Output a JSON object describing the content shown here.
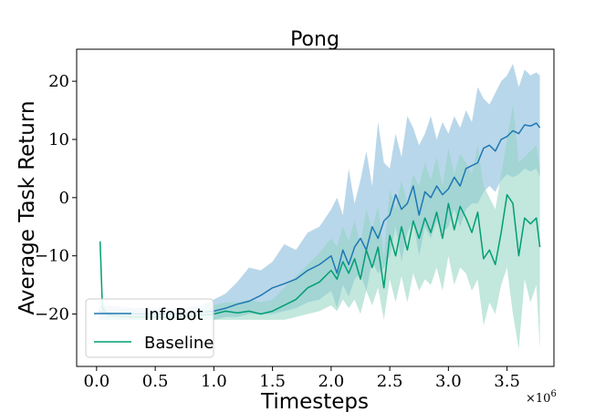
{
  "chart_data": {
    "type": "line",
    "title": "Pong",
    "xlabel": "Timesteps",
    "ylabel": "Average Task Return",
    "x_multiplier": "×10",
    "x_multiplier_exp": "6",
    "xlim": [
      -0.17,
      3.9
    ],
    "ylim": [
      -29,
      25.5
    ],
    "xticks": [
      0.0,
      0.5,
      1.0,
      1.5,
      2.0,
      2.5,
      3.0,
      3.5
    ],
    "xtick_labels": [
      "0.0",
      "0.5",
      "1.0",
      "1.5",
      "2.0",
      "2.5",
      "3.0",
      "3.5"
    ],
    "yticks": [
      -20,
      -10,
      0,
      10,
      20
    ],
    "ytick_labels": [
      "−20",
      "−10",
      "0",
      "10",
      "20"
    ],
    "grid": false,
    "legend_position": "lower-left",
    "series": [
      {
        "name": "InfoBot",
        "color": "#1f77b4",
        "band_color": "#7fb6d9",
        "x": [
          0.02,
          0.1,
          0.3,
          0.5,
          0.7,
          0.9,
          1.0,
          1.1,
          1.2,
          1.3,
          1.4,
          1.5,
          1.6,
          1.7,
          1.8,
          1.9,
          2.0,
          2.05,
          2.1,
          2.15,
          2.2,
          2.25,
          2.3,
          2.35,
          2.4,
          2.45,
          2.5,
          2.55,
          2.6,
          2.65,
          2.7,
          2.75,
          2.8,
          2.85,
          2.9,
          2.95,
          3.0,
          3.05,
          3.1,
          3.15,
          3.2,
          3.25,
          3.3,
          3.35,
          3.4,
          3.45,
          3.5,
          3.55,
          3.6,
          3.65,
          3.7,
          3.75,
          3.78
        ],
        "mean": [
          -19.5,
          -19.8,
          -20.0,
          -20.0,
          -20.0,
          -19.7,
          -19.5,
          -19.0,
          -18.3,
          -17.8,
          -16.8,
          -15.5,
          -14.8,
          -14.0,
          -12.5,
          -11.5,
          -10.0,
          -13.0,
          -9.0,
          -11.5,
          -8.5,
          -7.0,
          -9.0,
          -5.0,
          -7.0,
          -4.0,
          -3.0,
          0.5,
          -2.0,
          -1.0,
          2.0,
          -3.0,
          1.0,
          0.0,
          2.0,
          0.5,
          1.5,
          3.5,
          2.0,
          5.0,
          5.5,
          6.0,
          8.5,
          9.0,
          8.0,
          10.0,
          10.5,
          11.5,
          11.0,
          12.5,
          12.3,
          12.8,
          12.0
        ],
        "lower": [
          -21.0,
          -21.0,
          -21.0,
          -21.0,
          -21.0,
          -21.0,
          -21.0,
          -20.5,
          -20.5,
          -20.0,
          -20.0,
          -20.0,
          -19.5,
          -19.0,
          -18.0,
          -17.5,
          -16.0,
          -19.0,
          -15.0,
          -17.0,
          -14.0,
          -13.0,
          -16.0,
          -11.0,
          -13.0,
          -12.0,
          -10.0,
          -5.0,
          -11.0,
          -6.0,
          -4.0,
          -10.0,
          -5.0,
          -7.0,
          -4.0,
          -6.0,
          -5.0,
          -2.0,
          -5.0,
          -2.0,
          -1.0,
          -1.0,
          1.0,
          2.0,
          1.0,
          3.0,
          4.0,
          3.5,
          4.0,
          5.0,
          4.5,
          5.0,
          3.5
        ],
        "upper": [
          -18.5,
          -18.5,
          -19.0,
          -19.0,
          -19.0,
          -18.5,
          -17.5,
          -16.5,
          -14.5,
          -12.0,
          -12.5,
          -11.0,
          -8.0,
          -9.0,
          -6.0,
          -5.0,
          -2.0,
          0.0,
          -3.0,
          5.0,
          -1.0,
          3.0,
          8.0,
          2.0,
          13.0,
          6.0,
          5.0,
          11.0,
          7.0,
          14.0,
          12.0,
          9.0,
          11.0,
          14.0,
          10.0,
          13.0,
          11.0,
          14.0,
          12.0,
          15.0,
          13.0,
          19.0,
          17.0,
          16.0,
          18.0,
          20.0,
          21.0,
          23.0,
          19.0,
          22.0,
          21.0,
          21.5,
          21.0
        ]
      },
      {
        "name": "Baseline",
        "color": "#009e73",
        "band_color": "#8fd3c0",
        "x": [
          0.03,
          0.05,
          0.1,
          0.3,
          0.5,
          0.7,
          0.9,
          1.0,
          1.1,
          1.2,
          1.3,
          1.4,
          1.5,
          1.6,
          1.7,
          1.8,
          1.9,
          2.0,
          2.05,
          2.1,
          2.15,
          2.2,
          2.25,
          2.3,
          2.35,
          2.4,
          2.45,
          2.5,
          2.55,
          2.6,
          2.65,
          2.7,
          2.75,
          2.8,
          2.85,
          2.9,
          2.95,
          3.0,
          3.05,
          3.1,
          3.15,
          3.2,
          3.25,
          3.3,
          3.35,
          3.4,
          3.45,
          3.5,
          3.55,
          3.6,
          3.65,
          3.7,
          3.75,
          3.78
        ],
        "mean": [
          -7.5,
          -19.0,
          -20.2,
          -20.5,
          -20.5,
          -20.5,
          -20.2,
          -20.0,
          -19.5,
          -19.8,
          -19.5,
          -20.0,
          -19.5,
          -18.5,
          -17.5,
          -15.5,
          -14.5,
          -12.5,
          -14.0,
          -11.0,
          -13.0,
          -10.5,
          -14.0,
          -9.0,
          -12.0,
          -8.5,
          -15.5,
          -6.5,
          -10.0,
          -5.0,
          -9.0,
          -4.0,
          -7.0,
          -3.5,
          -6.0,
          -2.5,
          -7.0,
          -1.0,
          -5.5,
          -1.5,
          -3.5,
          -6.0,
          -2.5,
          -10.5,
          -9.0,
          -11.5,
          -6.0,
          0.5,
          -1.0,
          -10.0,
          -3.5,
          -4.5,
          -3.5,
          -8.5
        ],
        "lower": [
          -7.5,
          -20.0,
          -21.0,
          -21.0,
          -21.0,
          -21.0,
          -21.0,
          -21.0,
          -21.0,
          -21.0,
          -21.0,
          -21.0,
          -21.0,
          -21.0,
          -20.5,
          -20.0,
          -19.5,
          -18.5,
          -19.5,
          -17.5,
          -19.0,
          -17.5,
          -20.0,
          -16.0,
          -18.5,
          -15.5,
          -21.0,
          -14.0,
          -18.0,
          -13.5,
          -18.0,
          -13.0,
          -16.0,
          -14.0,
          -15.0,
          -12.0,
          -16.0,
          -10.0,
          -15.0,
          -12.0,
          -13.0,
          -16.0,
          -14.0,
          -22.0,
          -18.0,
          -20.0,
          -15.0,
          -12.0,
          -20.0,
          -26.0,
          -14.0,
          -18.0,
          -15.0,
          -26.0
        ],
        "upper": [
          -7.5,
          -18.0,
          -19.5,
          -19.5,
          -19.5,
          -19.5,
          -19.0,
          -18.5,
          -18.0,
          -18.0,
          -17.5,
          -18.0,
          -17.5,
          -15.5,
          -13.5,
          -11.5,
          -9.5,
          -7.0,
          -8.5,
          -5.0,
          -7.5,
          -4.0,
          -8.0,
          -2.0,
          -5.5,
          -1.5,
          -10.0,
          1.5,
          -2.0,
          3.0,
          -1.0,
          4.0,
          2.0,
          6.0,
          3.0,
          7.0,
          2.0,
          8.5,
          4.0,
          7.5,
          6.0,
          4.0,
          9.0,
          2.0,
          0.0,
          -2.0,
          4.0,
          10.0,
          16.0,
          6.0,
          7.0,
          8.0,
          9.0,
          5.0
        ]
      }
    ]
  }
}
